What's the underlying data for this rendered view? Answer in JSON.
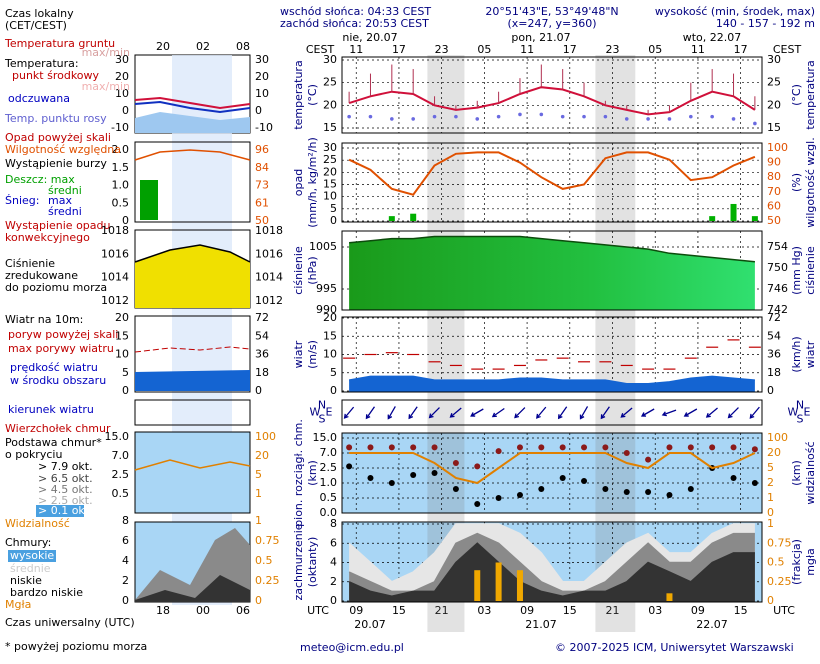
{
  "header": {
    "sunrise": "wschód słońca: 04:33 CEST",
    "sunset": "zachód słońca: 20:53 CEST",
    "coords": "20°51'43\"E, 53°49'48\"N",
    "grid_point": "(x=247, y=360)",
    "elevation_label": "wysokość (min, środek, max)",
    "elevation": "140 - 157 - 192 m"
  },
  "dates_top": [
    "nie, 20.07",
    "pon, 21.07",
    "wto, 22.07"
  ],
  "dates_bottom": [
    "20.07",
    "21.07",
    "22.07"
  ],
  "time_axis": {
    "local_label": "CEST",
    "utc_label": "UTC",
    "xlim": [
      7,
      66
    ],
    "night": [
      [
        19,
        24.2
      ],
      [
        42.6,
        48.2
      ]
    ],
    "utc_ticks": [
      {
        "value": 9,
        "label": "09"
      },
      15,
      21,
      {
        "value": 27,
        "label": "03"
      },
      {
        "value": 33,
        "label": "09"
      },
      {
        "value": 39,
        "label": "15"
      },
      {
        "value": 45,
        "label": "21"
      },
      {
        "value": 51,
        "label": "03"
      },
      {
        "value": 57,
        "label": "09"
      },
      {
        "value": 63,
        "label": "15"
      }
    ],
    "local_ticks": [
      {
        "value": 9,
        "label": "11"
      },
      {
        "value": 15,
        "label": "17"
      },
      {
        "value": 21,
        "label": "23"
      },
      {
        "value": 27,
        "label": "05"
      },
      {
        "value": 33,
        "label": "11"
      },
      {
        "value": 39,
        "label": "17"
      },
      {
        "value": 45,
        "label": "23"
      },
      {
        "value": 51,
        "label": "05"
      },
      {
        "value": 57,
        "label": "11"
      },
      {
        "value": 63,
        "label": "17"
      }
    ]
  },
  "chart_data": [
    {
      "type": "line",
      "ylabel": [
        "temperatura",
        "(°C)"
      ],
      "y2label": [
        "(°C)",
        "temperatura"
      ],
      "ylim": [
        15,
        30
      ],
      "yticks": [
        15,
        20,
        25,
        30
      ],
      "y2lim": [
        15,
        30
      ],
      "y2ticks": [
        15,
        20,
        25,
        30
      ],
      "y2_tick_color": "#000000",
      "grid": true,
      "x": [
        8,
        11,
        14,
        17,
        20,
        23,
        26,
        29,
        32,
        35,
        38,
        41,
        44,
        47,
        50,
        53,
        56,
        59,
        62,
        65
      ],
      "series": [
        {
          "name": "punkt środkowy",
          "color": "#d0103a",
          "style": "line",
          "values": [
            20.5,
            22,
            23,
            22.5,
            20,
            19,
            19.5,
            20.5,
            22.5,
            24,
            23.5,
            22,
            20,
            19,
            18,
            18.5,
            21,
            23,
            22,
            19
          ]
        },
        {
          "name": "max/min",
          "color": "#b03050",
          "style": "spike",
          "values": [
            23,
            27,
            29,
            28,
            22,
            20,
            21,
            23,
            26,
            29,
            28,
            25,
            21,
            20,
            19,
            20,
            25,
            28,
            27,
            22
          ]
        },
        {
          "name": "Temp. punktu rosy",
          "color": "#6a6ae0",
          "style": "dots",
          "values": [
            17.5,
            17.5,
            17,
            17,
            17.5,
            17.5,
            17,
            17.5,
            18,
            18,
            17.5,
            17.5,
            17.5,
            17,
            17,
            17,
            17.5,
            17.5,
            17,
            16
          ]
        }
      ]
    },
    {
      "type": "bar-line",
      "ylabel": [
        "opad",
        "(mm/h, kg/m²/h)"
      ],
      "y2label": [
        "(%)",
        "wilgotność wzgl."
      ],
      "ylim": [
        0,
        30
      ],
      "yticks": [
        0,
        5,
        10,
        15,
        20,
        25,
        30
      ],
      "y2lim": [
        50,
        100
      ],
      "y2ticks": [
        50,
        60,
        70,
        80,
        90,
        100
      ],
      "y2_tick_color": "#e05000",
      "grid": true,
      "x": [
        8,
        11,
        14,
        17,
        20,
        23,
        26,
        29,
        32,
        35,
        38,
        41,
        44,
        47,
        50,
        53,
        56,
        59,
        62,
        65
      ],
      "series": [
        {
          "name": "Deszcz: max",
          "color": "#00b000",
          "style": "bar",
          "values": [
            0,
            0,
            2,
            3,
            0,
            0,
            0,
            0,
            0,
            0,
            0,
            0,
            0,
            0,
            0,
            0,
            0,
            2,
            7,
            2
          ]
        },
        {
          "name": "Wilgotność względna",
          "color": "#e05000",
          "style": "line",
          "axis": "y2",
          "values": [
            92,
            85,
            72,
            68,
            88,
            96,
            97,
            97,
            90,
            80,
            72,
            75,
            93,
            97,
            97,
            92,
            78,
            80,
            88,
            94
          ]
        }
      ]
    },
    {
      "type": "area",
      "ylabel": [
        "ciśnienie",
        "(hPa)"
      ],
      "y2label": [
        "(mm Hg)",
        "ciśnienie"
      ],
      "ylim": [
        990,
        1008.8
      ],
      "yticks": [
        990,
        995,
        1005
      ],
      "y2lim": [
        742,
        757
      ],
      "y2ticks": [
        742,
        746,
        750,
        754
      ],
      "y2_tick_color": "#000000",
      "grid": true,
      "x": [
        8,
        11,
        14,
        17,
        20,
        23,
        26,
        29,
        32,
        35,
        38,
        41,
        44,
        47,
        50,
        53,
        56,
        59,
        62,
        65
      ],
      "series": [
        {
          "name": "Ciśnienie",
          "color": "#1f9a1f",
          "style": "area",
          "values": [
            1006,
            1006.5,
            1007,
            1007,
            1007.5,
            1007.5,
            1007.5,
            1007.5,
            1007.5,
            1007,
            1006.5,
            1006,
            1005.5,
            1005,
            1004.5,
            1003.5,
            1003,
            1002.5,
            1002,
            1001.5
          ]
        }
      ]
    },
    {
      "type": "area",
      "ylabel": [
        "wiatr",
        "(m/s)"
      ],
      "y2label": [
        "(km/h)",
        "wiatr"
      ],
      "ylim": [
        0,
        20
      ],
      "yticks": [
        0,
        5,
        10,
        15,
        20
      ],
      "y2lim": [
        0,
        72
      ],
      "y2ticks": [
        0,
        18,
        36,
        54,
        72
      ],
      "y2_tick_color": "#000000",
      "grid": true,
      "x": [
        8,
        11,
        14,
        17,
        20,
        23,
        26,
        29,
        32,
        35,
        38,
        41,
        44,
        47,
        50,
        53,
        56,
        59,
        62,
        65
      ],
      "series": [
        {
          "name": "prędkość wiatru",
          "color": "#1464d2",
          "style": "area",
          "values": [
            3,
            4,
            4,
            4,
            3,
            3,
            3,
            3,
            3.5,
            3.5,
            3,
            3,
            3,
            2,
            2,
            2.5,
            3.5,
            4,
            3.5,
            3
          ]
        },
        {
          "name": "max porywy wiatru",
          "color": "#c00000",
          "style": "dash",
          "values": [
            9,
            10,
            10.5,
            10,
            8,
            7,
            6,
            6,
            7,
            8.5,
            9,
            8,
            8,
            7,
            6,
            6,
            9,
            12,
            14,
            12
          ]
        }
      ]
    },
    {
      "type": "arrows",
      "compass": [
        "N",
        "W",
        "E",
        "S"
      ],
      "x": [
        8,
        11,
        14,
        17,
        20,
        23,
        26,
        29,
        32,
        35,
        38,
        41,
        44,
        47,
        50,
        53,
        56,
        59,
        62,
        65
      ],
      "series": [
        {
          "name": "kierunek wiatru",
          "color": "#000090",
          "style": "arrow",
          "values": [
            40,
            35,
            30,
            35,
            45,
            50,
            60,
            55,
            45,
            40,
            35,
            30,
            35,
            50,
            60,
            70,
            60,
            50,
            45,
            40
          ]
        }
      ]
    },
    {
      "type": "scatter-line",
      "scale": "piecewise",
      "ylabel": [
        "pion. rozciągł. chm.",
        "(km)"
      ],
      "y2label": [
        "(km)",
        "widzialność"
      ],
      "ylim": [
        0,
        15
      ],
      "yticks": [
        {
          "value": 0,
          "label": "0.0"
        },
        0.5,
        {
          "value": 1,
          "label": "1.0"
        },
        2.5,
        {
          "value": 7,
          "label": "7.0"
        },
        {
          "value": 15,
          "label": "15.0"
        }
      ],
      "y2lim": [
        0,
        100
      ],
      "y2ticks": [
        0,
        1,
        2,
        5,
        20,
        100
      ],
      "y2_tick_color": "#e08000",
      "grid": true,
      "x": [
        8,
        11,
        14,
        17,
        20,
        23,
        26,
        29,
        32,
        35,
        38,
        41,
        44,
        47,
        50,
        53,
        56,
        59,
        62,
        65
      ],
      "series": [
        {
          "name": "Wierzchołek chmur",
          "color": "#8b1a1a",
          "style": "dots",
          "values": [
            10,
            10,
            10,
            10,
            10,
            4,
            3,
            8,
            10,
            10,
            10,
            10,
            10,
            7,
            5,
            10,
            10,
            10,
            10,
            9
          ]
        },
        {
          "name": "> 7.9 okt.",
          "color": "#000000",
          "style": "dots",
          "values": [
            3,
            1.5,
            1,
            1.8,
            2,
            0.8,
            0.3,
            0.5,
            0.6,
            0.8,
            1.5,
            1.2,
            0.8,
            0.7,
            0.7,
            0.6,
            0.8,
            2.5,
            1.5,
            1
          ]
        },
        {
          "name": "Widzialność",
          "color": "#e08000",
          "style": "line",
          "axis": "y2",
          "values": [
            20,
            20,
            20,
            20,
            10,
            3,
            2,
            5,
            20,
            20,
            20,
            20,
            20,
            10,
            5,
            20,
            20,
            5,
            10,
            20
          ]
        }
      ]
    },
    {
      "type": "area",
      "ylabel": [
        "zachmurzenie",
        "(oktanty)"
      ],
      "y2label": [
        "(frakcja)",
        "mgła"
      ],
      "ylim": [
        0,
        8
      ],
      "yticks": [
        0,
        2,
        4,
        6,
        8
      ],
      "y2lim": [
        0,
        1
      ],
      "y2ticks": [
        0,
        0.25,
        0.5,
        0.75,
        1
      ],
      "y2_tick_color": "#e08000",
      "grid": true,
      "x": [
        8,
        11,
        14,
        17,
        20,
        23,
        26,
        29,
        32,
        35,
        38,
        41,
        44,
        47,
        50,
        53,
        56,
        59,
        62,
        65
      ],
      "series": [
        {
          "name": "wysokie",
          "color": "#e6e6e6",
          "style": "area",
          "values": [
            6,
            4,
            2,
            3,
            5,
            8,
            8,
            8,
            7,
            5,
            2,
            2,
            4,
            6,
            7,
            5,
            5,
            7,
            8,
            8
          ]
        },
        {
          "name": "średnie",
          "color": "#8a8a8a",
          "style": "area",
          "values": [
            3,
            2,
            1,
            1,
            2,
            6,
            7,
            6,
            4,
            2,
            1,
            1,
            2,
            4,
            6,
            4,
            4,
            6,
            7,
            7
          ]
        },
        {
          "name": "niskie",
          "color": "#333333",
          "style": "area",
          "values": [
            2,
            1,
            0.5,
            1,
            1,
            4,
            6,
            4,
            2,
            1,
            0.5,
            1,
            1,
            2,
            4,
            3,
            2,
            4,
            5,
            5
          ]
        },
        {
          "name": "Mgła",
          "color": "#f0a800",
          "style": "bar",
          "axis": "y2",
          "values": [
            0,
            0,
            0,
            0,
            0,
            0,
            0.4,
            0.5,
            0.4,
            0,
            0,
            0,
            0,
            0,
            0,
            0.1,
            0,
            0,
            0,
            0
          ]
        }
      ]
    }
  ],
  "legend": {
    "lines": [
      "Czas lokalny",
      "(CET/CEST)",
      "Temperatura gruntu",
      "max/min",
      "Temperatura:",
      "odczuwana",
      "Opad powyżej skali",
      "Wystąpienie burzy",
      "średni",
      "Śnieg:",
      "max",
      "średni",
      "Wystąpienie opadu",
      "konwekcyjnego",
      "zredukowane",
      "do poziomu morza",
      "Wiatr na 10m:",
      "poryw powyżej skali",
      "w środku obszaru",
      "Podstawa chmur*",
      "o pokryciu",
      "> 6.5 okt.",
      "> 4.5 okt.",
      "> 2.5 okt.",
      "> 0.1 okt.",
      "Chmury:",
      "bardzo niskie",
      "Czas uniwersalny (UTC)",
      "* powyżej poziomu morza"
    ],
    "hours_top": [
      "20",
      "02",
      "08"
    ],
    "hours_bottom": [
      "18",
      "00",
      "06"
    ],
    "mini_ticks": [
      {
        "left": [
          "30",
          "20",
          "10",
          "0",
          "-10"
        ],
        "right": [
          "30",
          "20",
          "10",
          "0",
          "-10"
        ]
      },
      {
        "left": [
          "2.0",
          "1.5",
          "1.0",
          "0.5",
          "0"
        ],
        "right": [
          "96",
          "84",
          "73",
          "61",
          "50"
        ]
      },
      {
        "left": [
          "1018",
          "1016",
          "1014",
          "1012"
        ],
        "right": [
          "1018",
          "1016",
          "1014",
          "1012"
        ]
      },
      {
        "left": [
          "20",
          "15",
          "10",
          "5",
          "0"
        ],
        "right": [
          "72",
          "54",
          "36",
          "18",
          "0"
        ]
      },
      {
        "left": [
          "15.0",
          "7.0",
          "2.5",
          "0.5"
        ],
        "right": [
          "100",
          "20",
          "5",
          "1"
        ]
      },
      {
        "left": [
          "8",
          "6",
          "4",
          "2",
          "0"
        ],
        "right": [
          "1",
          "0.75",
          "0.5",
          "0.25",
          "0"
        ]
      }
    ]
  },
  "footer": {
    "email": "meteo@icm.edu.pl",
    "copyright": "© 2007-2025 ICM, Uniwersytet Warszawski"
  }
}
